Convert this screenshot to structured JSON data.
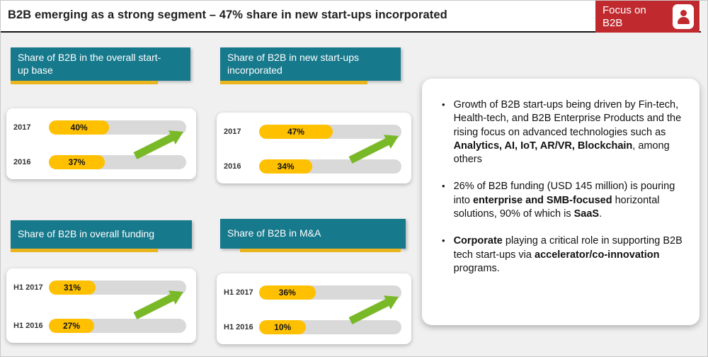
{
  "header": {
    "title": "B2B emerging as a strong segment – 47% share in new start-ups incorporated",
    "badge_label": "Focus on B2B"
  },
  "colors": {
    "teal_header": "#17798c",
    "gold_bar": "#ffc000",
    "gold_underline": "#eab41c",
    "badge_red": "#c02a2f",
    "arrow_green": "#79b928",
    "track_gray": "#d9d9d9",
    "page_bg": "#f0f0f0"
  },
  "chart_data": [
    {
      "type": "bar",
      "title": "Share of B2B in the overall start-up base",
      "categories": [
        "2017",
        "2016"
      ],
      "values": [
        40,
        37
      ],
      "value_labels": [
        "40%",
        "37%"
      ],
      "unit": "%",
      "xlim": [
        0,
        100
      ],
      "trend": "up"
    },
    {
      "type": "bar",
      "title": "Share of B2B in new start-ups incorporated",
      "categories": [
        "2017",
        "2016"
      ],
      "values": [
        47,
        34
      ],
      "value_labels": [
        "47%",
        "34%"
      ],
      "unit": "%",
      "xlim": [
        0,
        100
      ],
      "trend": "up"
    },
    {
      "type": "bar",
      "title": "Share of B2B in overall funding",
      "categories": [
        "H1 2017",
        "H1 2016"
      ],
      "values": [
        31,
        27
      ],
      "value_labels": [
        "31%",
        "27%"
      ],
      "unit": "%",
      "xlim": [
        0,
        100
      ],
      "trend": "up"
    },
    {
      "type": "bar",
      "title": "Share of B2B in M&A",
      "categories": [
        "H1 2017",
        "H1 2016"
      ],
      "values": [
        36,
        10
      ],
      "value_labels": [
        "36%",
        "10%"
      ],
      "unit": "%",
      "xlim": [
        0,
        100
      ],
      "trend": "up"
    }
  ],
  "panel": {
    "bullet_marker": "•",
    "bullets": [
      {
        "segments": [
          {
            "text": "Growth of B2B start-ups being driven by Fin-tech, Health-tech, and B2B Enterprise Products and the rising focus on advanced technologies such as ",
            "bold": false
          },
          {
            "text": "Analytics, AI, IoT, AR/VR, Blockchain",
            "bold": true
          },
          {
            "text": ", among others",
            "bold": false
          }
        ]
      },
      {
        "segments": [
          {
            "text": "26% of B2B funding (USD 145 million) is pouring into ",
            "bold": false
          },
          {
            "text": "enterprise and SMB-focused",
            "bold": true
          },
          {
            "text": " horizontal solutions, 90% of which is ",
            "bold": false
          },
          {
            "text": "SaaS",
            "bold": true
          },
          {
            "text": ".",
            "bold": false
          }
        ]
      },
      {
        "segments": [
          {
            "text": "Corporate",
            "bold": true
          },
          {
            "text": " playing a critical role in supporting B2B tech start-ups via ",
            "bold": false
          },
          {
            "text": "accelerator/co-innovation",
            "bold": true
          },
          {
            "text": " programs.",
            "bold": false
          }
        ]
      }
    ]
  }
}
